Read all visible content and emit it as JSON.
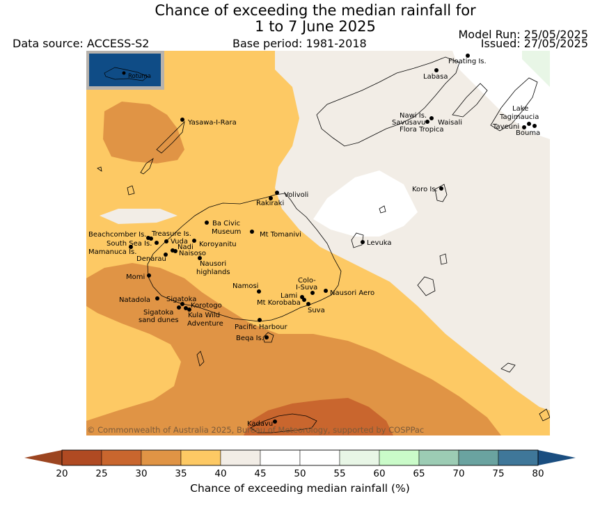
{
  "title_line1": "Chance of exceeding the median rainfall for",
  "title_line2": "1 to 7 June 2025",
  "data_source": "Data source: ACCESS-S2",
  "base_period": "Base period: 1981-2018",
  "model_run": "Model Run: 25/05/2025",
  "issued": "Issued: 27/05/2025",
  "copyright": "© Commonwealth of Australia 2025, Bureau of Meteorology, supported by COSPPac",
  "inset_label": "Rotuma",
  "places": {
    "floating": "Floating Is.",
    "labasa": "Labasa",
    "nawi": "Nawi Is.",
    "savusavu": "Savusavu",
    "waisali": "Waisali",
    "flora": "Flora Tropica",
    "lake1": "Lake",
    "lake2": "Tagimaucia",
    "taveuni": "Taveuni",
    "bouma": "Bouma",
    "yasawa": "Yasawa-I-Rara",
    "koro": "Koro Is.",
    "volivoli": "Volivoli",
    "rakiraki": "Rakiraki",
    "baciv1": "Ba Civic",
    "baciv2": "Museum",
    "tomanivi": "Mt Tomanivi",
    "beachcomber": "Beachcomber Is.",
    "treasure": "Treasure Is.",
    "southsea": "South Sea Is.",
    "vuda": "Vuda",
    "koroyanitu": "Koroyanitu",
    "nadi": "Nadi",
    "mamanuca": "Mamanuca Is.",
    "naisoso": "Naisoso",
    "denarau": "Denarau",
    "nausori1": "Nausori",
    "nausori2": "highlands",
    "levuka": "Levuka",
    "momi": "Momi",
    "namosi": "Namosi",
    "colo1": "Colo-",
    "colo2": "I-Suva",
    "lami": "Lami",
    "nausoriaero": "Nausori Aero",
    "natadola": "Natadola",
    "sigatoka": "Sigatoka",
    "korobaba": "Mt Korobaba",
    "suva": "Suva",
    "korotogo": "Korotogo",
    "sigdunes1": "Sigatoka",
    "sigdunes2": "sand dunes",
    "kula1": "Kula Wild",
    "kula2": "Adventure",
    "pacharbour": "Pacific Harbour",
    "beqa": "Beqa Is.",
    "kadavu": "Kadavu"
  },
  "colorbar": {
    "title": "Chance of exceeding median rainfall (%)",
    "ticks": [
      "20",
      "25",
      "30",
      "35",
      "40",
      "45",
      "50",
      "55",
      "60",
      "65",
      "70",
      "75",
      "80"
    ],
    "low_color": "#9c4520",
    "high_color": "#1a4e80",
    "colors": [
      "#b04a22",
      "#c9662e",
      "#e09445",
      "#fdc964",
      "#f2ede6",
      "#ffffff",
      "#ffffff",
      "#e8f6e6",
      "#cafbc9",
      "#9cccb4",
      "#6aa3a0",
      "#3f7799"
    ]
  },
  "legend_colors": {
    "c20_25": "#b04a22",
    "c25_30": "#c9662e",
    "c30_35": "#e09445",
    "c35_40": "#fdc964",
    "c40_45": "#f2ede6",
    "c45_55": "#ffffff",
    "c55_60": "#e8f6e6"
  }
}
